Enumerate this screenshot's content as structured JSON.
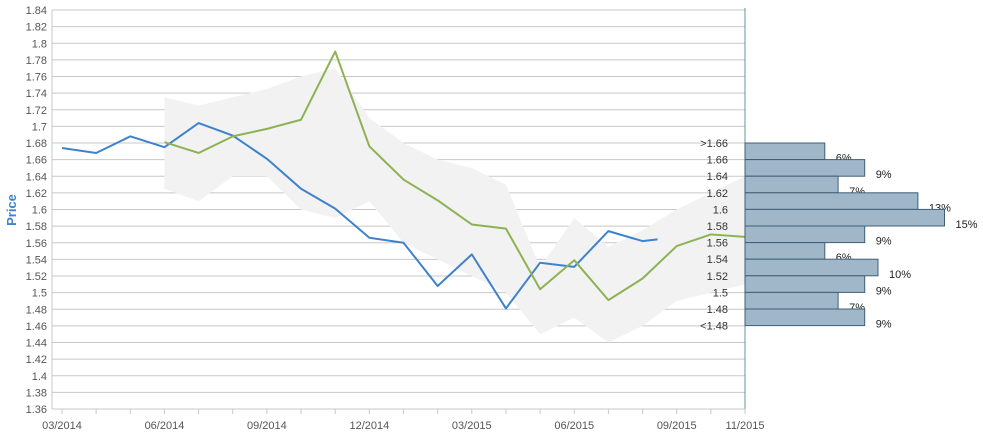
{
  "chart_data": {
    "type": "line",
    "ylabel": "Price",
    "ylim": [
      1.36,
      1.84
    ],
    "ytick_labels": [
      "1.36",
      "1.38",
      "1.4",
      "1.42",
      "1.44",
      "1.46",
      "1.48",
      "1.5",
      "1.52",
      "1.54",
      "1.56",
      "1.58",
      "1.6",
      "1.62",
      "1.64",
      "1.66",
      "1.68",
      "1.7",
      "1.72",
      "1.74",
      "1.76",
      "1.78",
      "1.8",
      "1.82",
      "1.84"
    ],
    "xtick_labels": [
      "03/2014",
      "06/2014",
      "09/2014",
      "12/2014",
      "03/2015",
      "06/2015",
      "09/2015",
      "11/2015"
    ],
    "grid": true,
    "band": {
      "x": [
        "06/2014",
        "07/2014",
        "08/2014",
        "09/2014",
        "10/2014",
        "11/2014",
        "12/2014",
        "01/2015",
        "02/2015",
        "03/2015",
        "04/2015",
        "05/2015",
        "06/2015",
        "07/2015",
        "08/2015",
        "09/2015",
        "10/2015",
        "11/2015"
      ],
      "upper": [
        1.735,
        1.725,
        1.735,
        1.745,
        1.76,
        1.77,
        1.71,
        1.68,
        1.66,
        1.65,
        1.63,
        1.53,
        1.59,
        1.555,
        1.575,
        1.6,
        1.62,
        1.64
      ],
      "lower": [
        1.625,
        1.61,
        1.64,
        1.64,
        1.6,
        1.59,
        1.61,
        1.56,
        1.54,
        1.52,
        1.5,
        1.45,
        1.47,
        1.44,
        1.46,
        1.49,
        1.5,
        1.51
      ],
      "color": "#f2f2f2"
    },
    "series": [
      {
        "color": "#3f82cc",
        "x": [
          "03/2014",
          "04/2014",
          "05/2014",
          "06/2014",
          "07/2014",
          "08/2014",
          "09/2014",
          "10/2014",
          "11/2014",
          "12/2014",
          "01/2015",
          "02/2015",
          "03/2015",
          "04/2015",
          "05/2015",
          "06/2015",
          "07/2015",
          "08/2015",
          "08/2015"
        ],
        "values": [
          1.674,
          1.668,
          1.688,
          1.675,
          1.704,
          1.689,
          1.661,
          1.625,
          1.601,
          1.566,
          1.56,
          1.508,
          1.546,
          1.481,
          1.536,
          1.531,
          1.574,
          1.562,
          1.564
        ]
      },
      {
        "color": "#8db254",
        "x": [
          "06/2014",
          "07/2014",
          "08/2014",
          "09/2014",
          "10/2014",
          "11/2014",
          "12/2014",
          "01/2015",
          "02/2015",
          "03/2015",
          "04/2015",
          "05/2015",
          "06/2015",
          "07/2015",
          "08/2015",
          "09/2015",
          "10/2015",
          "11/2015"
        ],
        "values": [
          1.681,
          1.668,
          1.688,
          1.697,
          1.708,
          1.79,
          1.676,
          1.636,
          1.611,
          1.582,
          1.577,
          1.504,
          1.539,
          1.491,
          1.517,
          1.556,
          1.57,
          1.567
        ]
      }
    ],
    "histogram": {
      "bar_color": "#9fb7c8",
      "bars": [
        {
          "label": ">1.66",
          "percent": "6%",
          "value": 6
        },
        {
          "label": "1.66",
          "percent": "9%",
          "value": 9
        },
        {
          "label": "1.64",
          "percent": "7%",
          "value": 7
        },
        {
          "label": "1.62",
          "percent": "13%",
          "value": 13
        },
        {
          "label": "1.6",
          "percent": "15%",
          "value": 15
        },
        {
          "label": "1.58",
          "percent": "9%",
          "value": 9
        },
        {
          "label": "1.56",
          "percent": "6%",
          "value": 6
        },
        {
          "label": "1.54",
          "percent": "10%",
          "value": 10
        },
        {
          "label": "1.52",
          "percent": "9%",
          "value": 9
        },
        {
          "label": "1.5",
          "percent": "7%",
          "value": 7
        },
        {
          "label": "1.48",
          "percent": "9%",
          "value": 9
        },
        {
          "label": "<1.48",
          "percent": "",
          "value": null
        }
      ]
    }
  },
  "colors": {
    "axis_title": "#3f82cc",
    "grid": "#c8c8c8",
    "divider": "#6a8fa8"
  }
}
